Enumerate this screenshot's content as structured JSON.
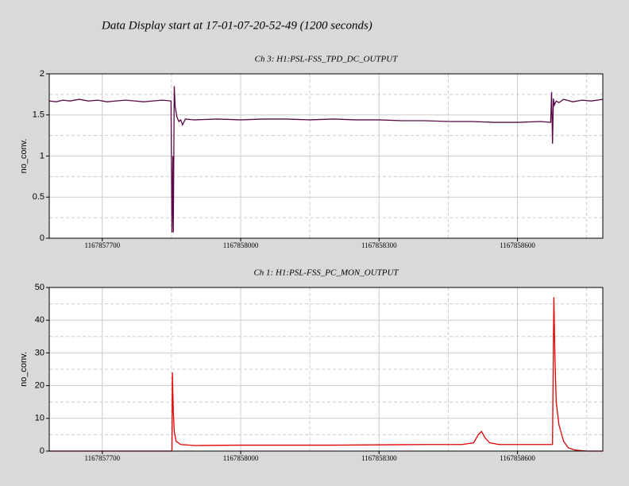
{
  "header": {
    "title": "Data Display start at 17-01-07-20-52-49 (1200 seconds)"
  },
  "chart_data": [
    {
      "type": "line",
      "title": "Ch 3: H1:PSL-FSS_TPD_DC_OUTPUT",
      "y_label": "no_conv.",
      "xlim": [
        1167857585,
        1167858785
      ],
      "xticks": [
        1167857700,
        1167858000,
        1167858300,
        1167858600
      ],
      "xminorticks": [
        1167857850,
        1167858150,
        1167858450,
        1167858750
      ],
      "ylim": [
        0,
        2
      ],
      "yticks": [
        0,
        0.5,
        1,
        1.5,
        2
      ],
      "yminorticks": [
        0.25,
        0.75,
        1.25,
        1.75
      ],
      "grid": true,
      "series": [
        {
          "name": "Ch 3",
          "color": "#5a0a46",
          "x": [
            1167857585,
            1167857600,
            1167857615,
            1167857630,
            1167857650,
            1167857670,
            1167857690,
            1167857710,
            1167857730,
            1167857750,
            1167857770,
            1167857790,
            1167857810,
            1167857830,
            1167857849,
            1167857851,
            1167857853,
            1167857854,
            1167857856,
            1167857858,
            1167857862,
            1167857866,
            1167857870,
            1167857874,
            1167857880,
            1167857900,
            1167857950,
            1167858000,
            1167858050,
            1167858100,
            1167858150,
            1167858200,
            1167858250,
            1167858300,
            1167858350,
            1167858400,
            1167858450,
            1167858500,
            1167858550,
            1167858600,
            1167858650,
            1167858672,
            1167858674,
            1167858676,
            1167858678,
            1167858680,
            1167858684,
            1167858690,
            1167858700,
            1167858720,
            1167858740,
            1167858760,
            1167858785
          ],
          "values": [
            1.67,
            1.66,
            1.68,
            1.67,
            1.69,
            1.67,
            1.68,
            1.66,
            1.67,
            1.68,
            1.67,
            1.66,
            1.67,
            1.68,
            1.67,
            0.07,
            1.0,
            0.07,
            1.85,
            1.6,
            1.47,
            1.42,
            1.44,
            1.38,
            1.45,
            1.44,
            1.45,
            1.44,
            1.45,
            1.45,
            1.44,
            1.45,
            1.44,
            1.44,
            1.43,
            1.43,
            1.42,
            1.42,
            1.41,
            1.41,
            1.42,
            1.41,
            1.78,
            1.15,
            1.7,
            1.62,
            1.67,
            1.65,
            1.69,
            1.66,
            1.68,
            1.67,
            1.69
          ]
        }
      ]
    },
    {
      "type": "line",
      "title": "Ch 1: H1:PSL-FSS_PC_MON_OUTPUT",
      "y_label": "no_conv.",
      "xlim": [
        1167857585,
        1167858785
      ],
      "xticks": [
        1167857700,
        1167858000,
        1167858300,
        1167858600
      ],
      "xminorticks": [
        1167857850,
        1167858150,
        1167858450,
        1167858750
      ],
      "ylim": [
        0,
        50
      ],
      "yticks": [
        0,
        10,
        20,
        30,
        40,
        50
      ],
      "yminorticks": [
        5,
        15,
        25,
        35,
        45
      ],
      "grid": true,
      "series": [
        {
          "name": "Ch 1",
          "color": "#e00000",
          "x": [
            1167857585,
            1167857700,
            1167857851,
            1167857852,
            1167857854,
            1167857856,
            1167857860,
            1167857870,
            1167857900,
            1167858000,
            1167858100,
            1167858200,
            1167858300,
            1167858400,
            1167858480,
            1167858505,
            1167858515,
            1167858522,
            1167858530,
            1167858540,
            1167858560,
            1167858600,
            1167858676,
            1167858678,
            1167858679,
            1167858681,
            1167858684,
            1167858690,
            1167858700,
            1167858710,
            1167858725,
            1167858750,
            1167858785
          ],
          "values": [
            0,
            0,
            0,
            24,
            12,
            6,
            3,
            2,
            1.7,
            1.8,
            1.8,
            1.8,
            1.9,
            2.0,
            2.0,
            2.5,
            5,
            6,
            4,
            2.5,
            2,
            2,
            2,
            34,
            47,
            30,
            15,
            8,
            3,
            1,
            0.3,
            0,
            0
          ]
        }
      ]
    }
  ]
}
